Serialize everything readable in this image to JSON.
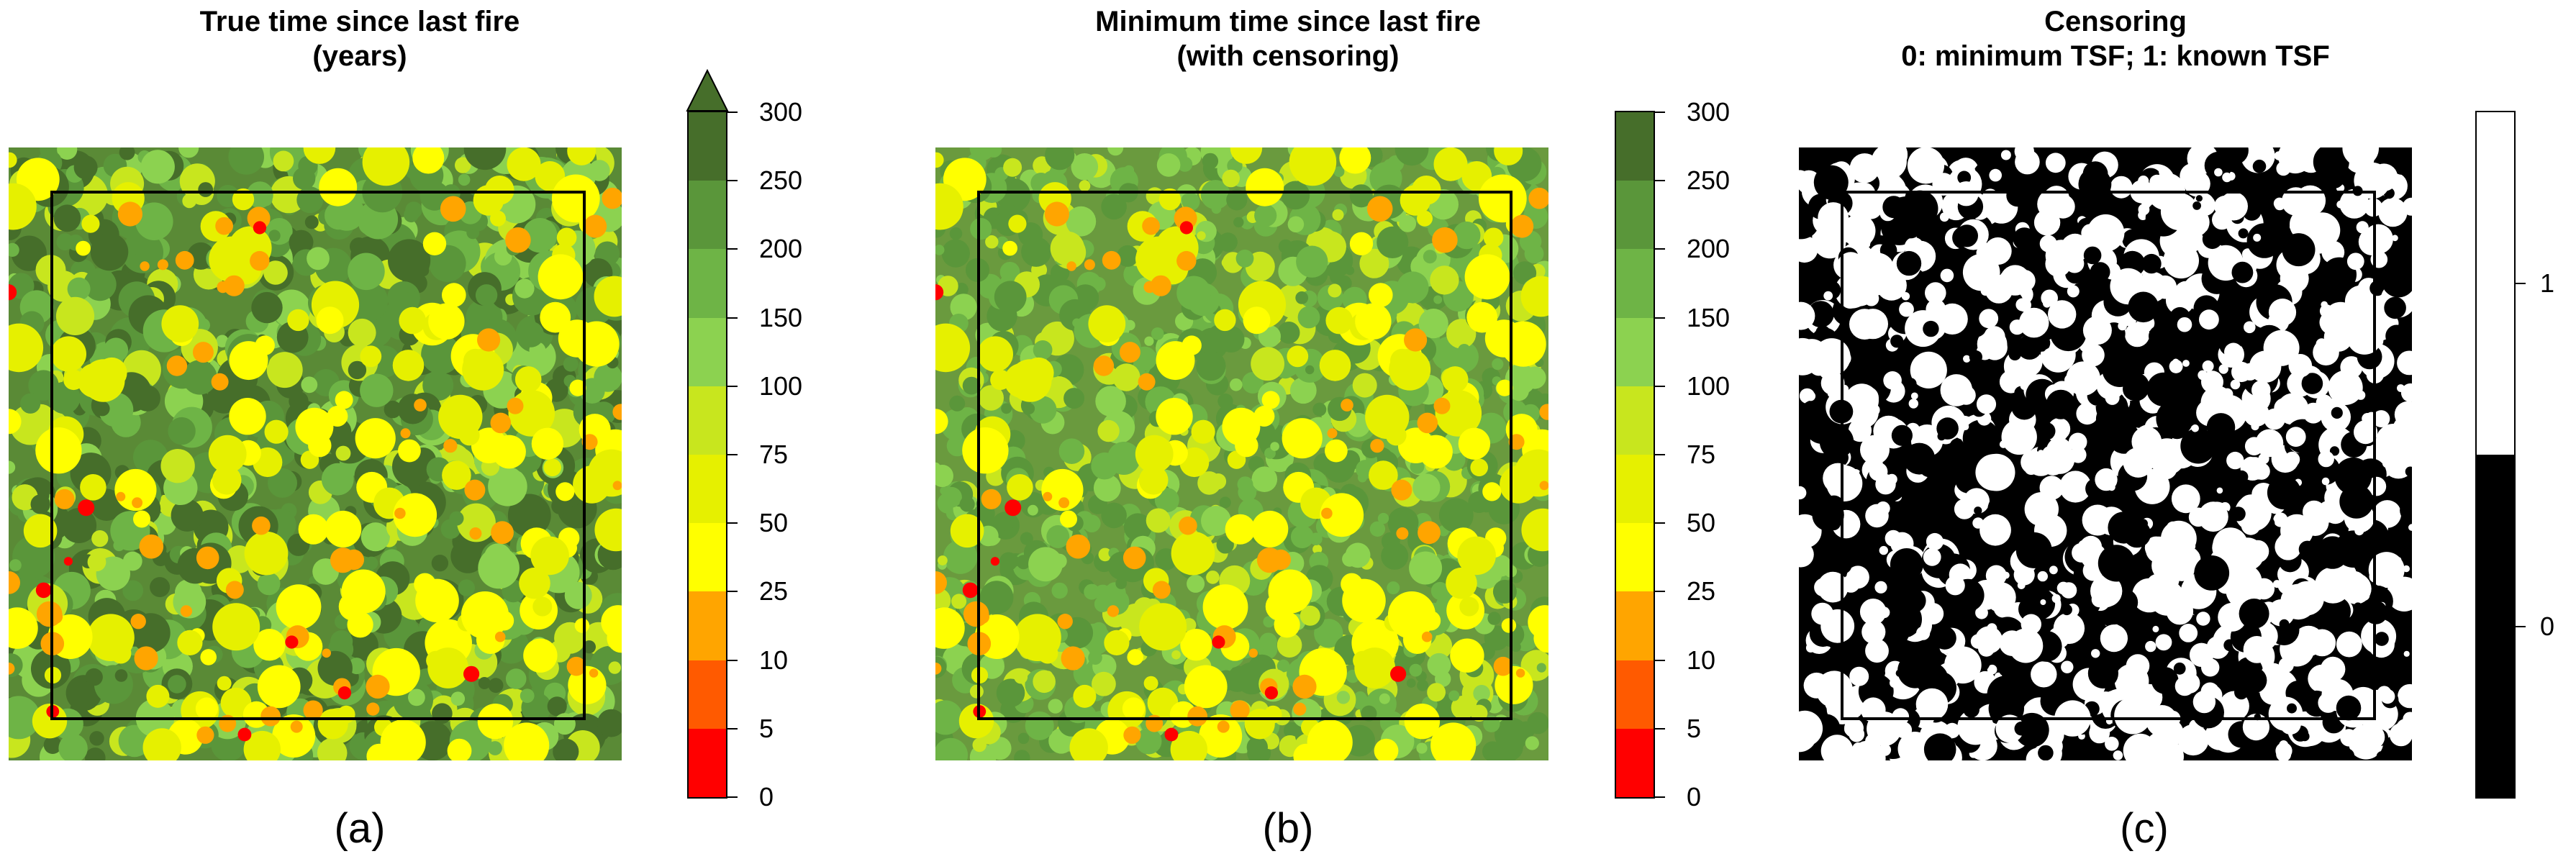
{
  "panels": [
    {
      "title_line1": "True time since last fire",
      "title_line2": "(years)",
      "label": "(a)"
    },
    {
      "title_line1": "Minimum time since last fire",
      "title_line2": "(with censoring)",
      "label": "(b)"
    },
    {
      "title_line1": "Censoring",
      "title_line2": "0: minimum TSF; 1: known TSF",
      "label": "(c)"
    }
  ],
  "tsf_colorbar": {
    "breaks": [
      "0",
      "5",
      "10",
      "25",
      "50",
      "75",
      "100",
      "150",
      "200",
      "250",
      "300"
    ],
    "colors": [
      "#ff0000",
      "#ff5a00",
      "#ffa500",
      "#ffff00",
      "#e6f000",
      "#c8e61e",
      "#8cd250",
      "#6eb446",
      "#5a963a",
      "#466e2a"
    ],
    "panel_a_extends_top": true
  },
  "censor_colorbar": {
    "labels": [
      "0",
      "1"
    ],
    "colors": [
      "#000000",
      "#ffffff"
    ]
  }
}
